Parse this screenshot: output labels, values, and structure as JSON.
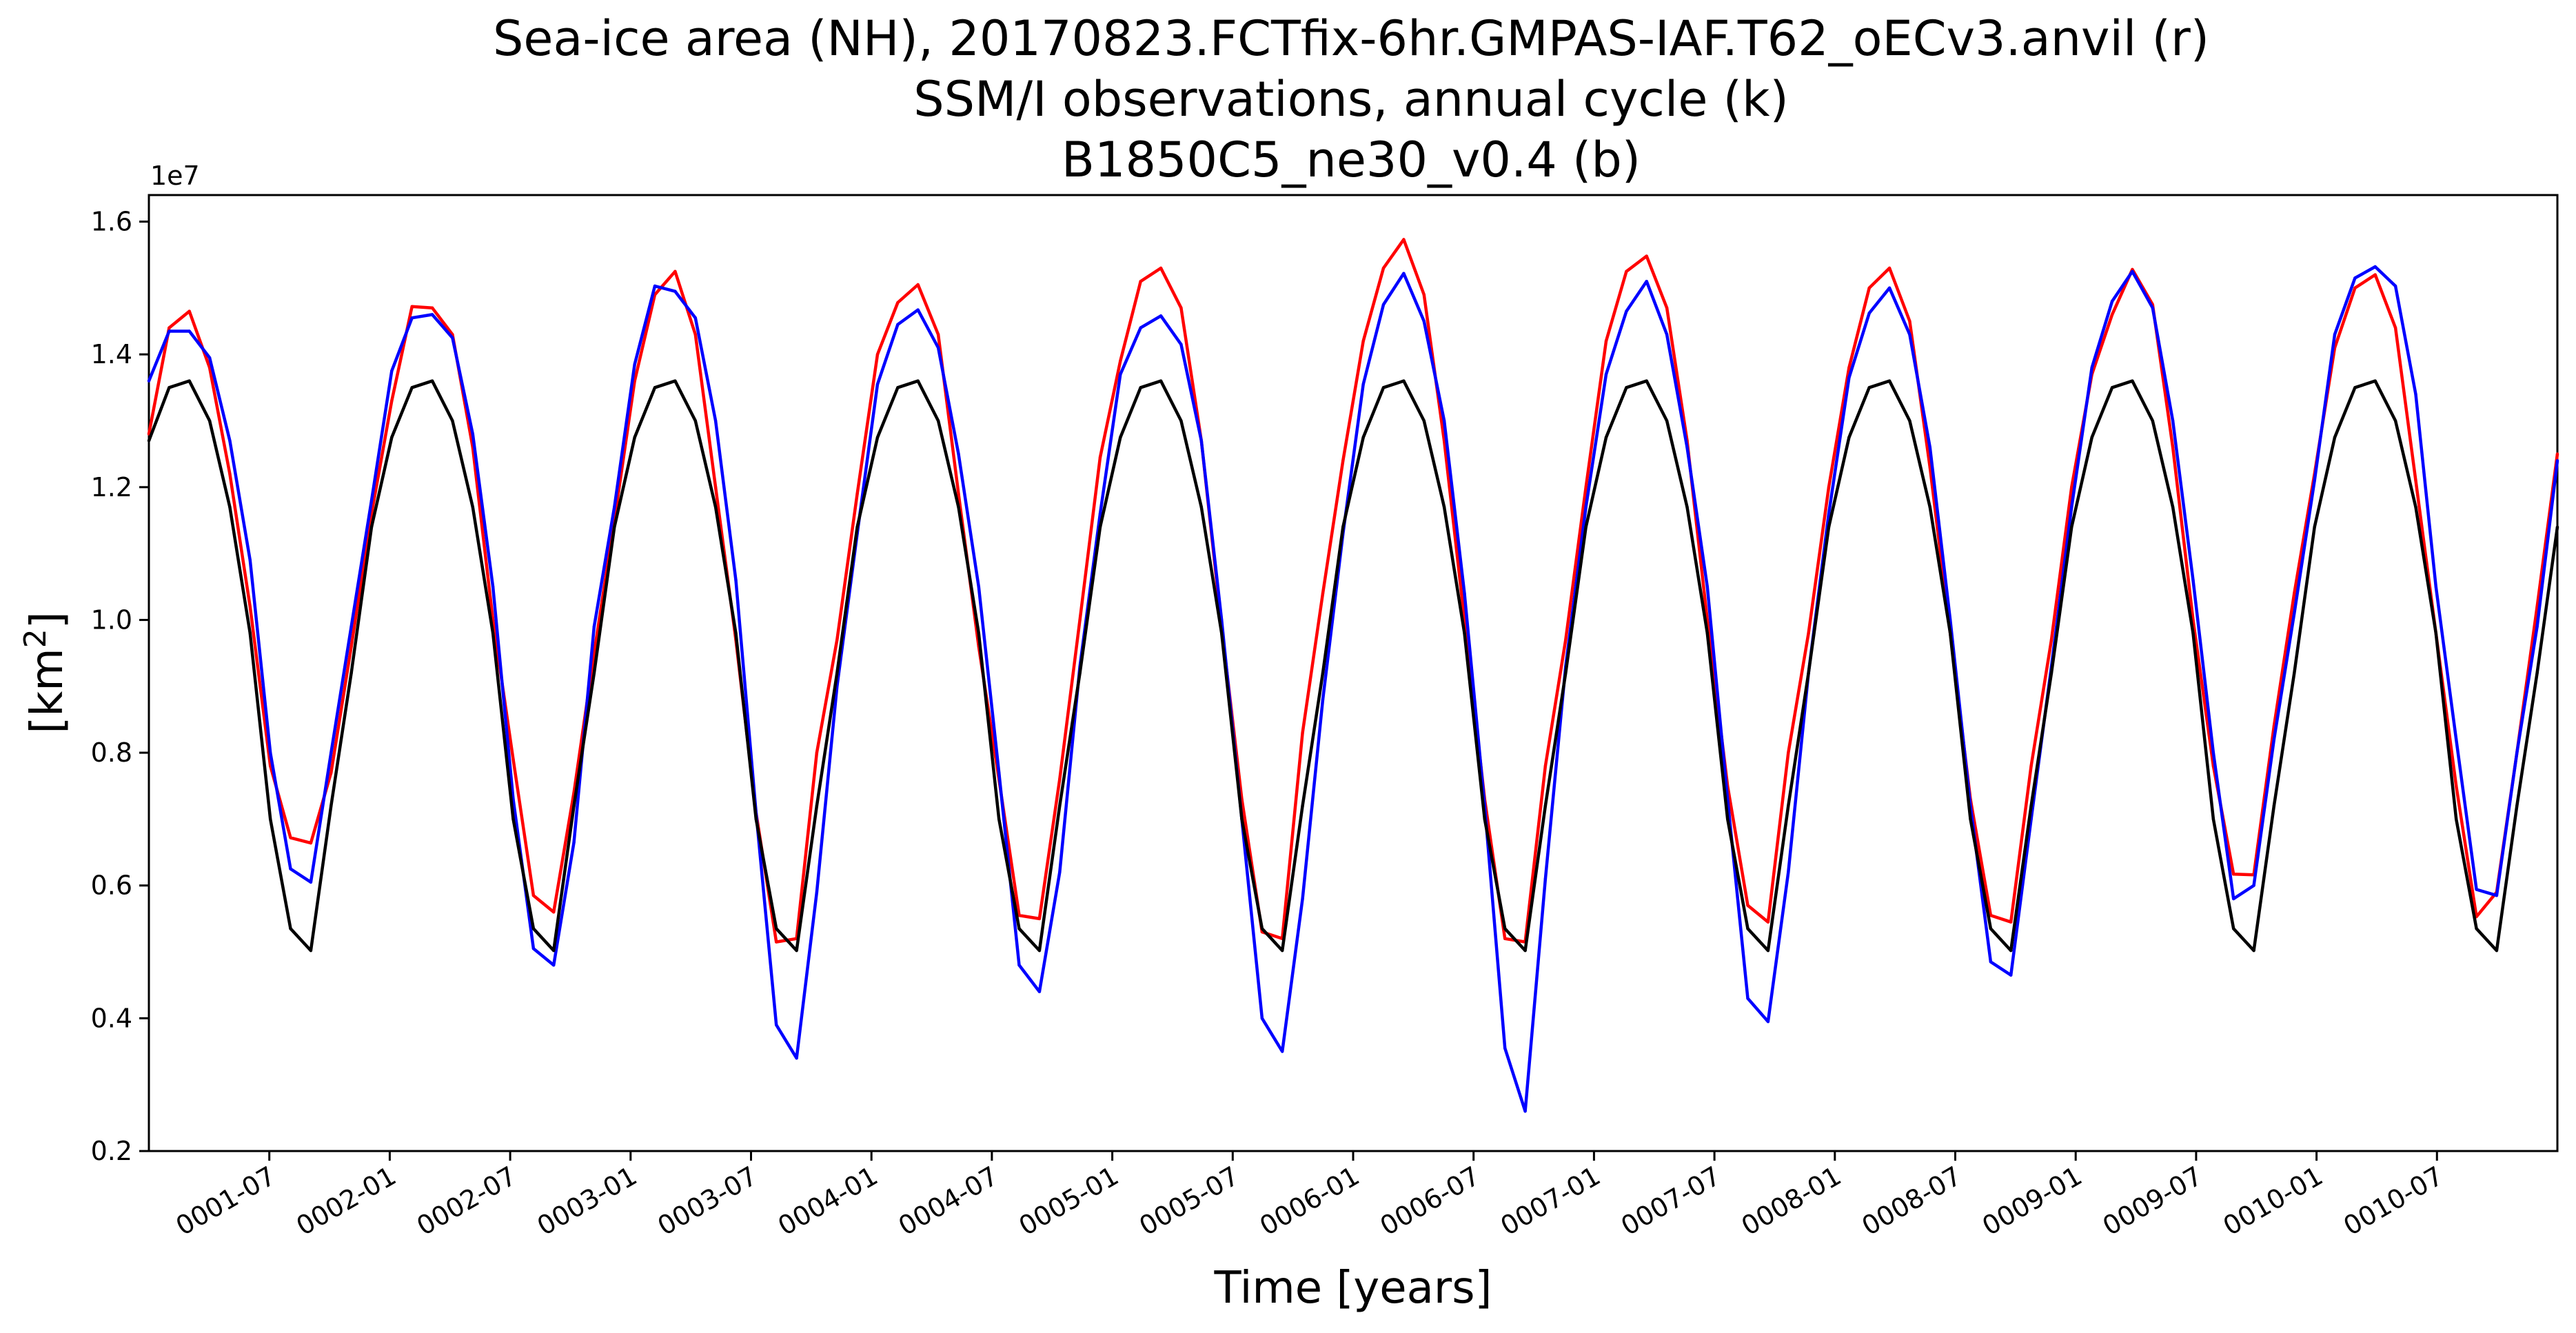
{
  "chart_data": {
    "type": "line",
    "title_lines": [
      "Sea-ice area (NH), 20170823.FCTfix-6hr.GMPAS-IAF.T62_oECv3.anvil (r)",
      "SSM/I observations, annual cycle (k)",
      "B1850C5_ne30_v0.4 (b)"
    ],
    "xlabel": "Time [years]",
    "ylabel_base": "[km",
    "ylabel_sup": "2",
    "ylabel_end": "]",
    "y_offset_label": "1e7",
    "ylim": [
      0.2,
      1.64
    ],
    "xlim": [
      0.0,
      10.0
    ],
    "yticks": [
      0.2,
      0.4,
      0.6,
      0.8,
      1.0,
      1.2,
      1.4,
      1.6
    ],
    "ytick_labels": [
      "0.2",
      "0.4",
      "0.6",
      "0.8",
      "1.0",
      "1.2",
      "1.4",
      "1.6"
    ],
    "xtick_labels": [
      "0001-07",
      "0002-01",
      "0002-07",
      "0003-01",
      "0003-07",
      "0004-01",
      "0004-07",
      "0005-01",
      "0005-07",
      "0006-01",
      "0006-07",
      "0007-01",
      "0007-07",
      "0008-01",
      "0008-07",
      "0009-01",
      "0009-07",
      "0010-01",
      "0010-07"
    ],
    "xtick_positions_years": [
      0.5,
      1.0,
      1.5,
      2.0,
      2.5,
      3.0,
      3.5,
      4.0,
      4.5,
      5.0,
      5.5,
      6.0,
      6.5,
      7.0,
      7.5,
      8.0,
      8.5,
      9.0,
      9.5
    ],
    "grid": false,
    "series": [
      {
        "color": "#ff0000",
        "values": [
          1.28,
          1.44,
          1.465,
          1.38,
          1.22,
          1.02,
          0.78,
          0.672,
          0.664,
          0.77,
          0.96,
          1.16,
          1.33,
          1.472,
          1.47,
          1.43,
          1.26,
          1.0,
          0.79,
          0.585,
          0.56,
          0.74,
          0.95,
          1.15,
          1.36,
          1.49,
          1.525,
          1.43,
          1.2,
          0.97,
          0.71,
          0.515,
          0.52,
          0.8,
          0.97,
          1.19,
          1.4,
          1.478,
          1.505,
          1.43,
          1.19,
          0.96,
          0.76,
          0.555,
          0.55,
          0.76,
          1.0,
          1.245,
          1.39,
          1.51,
          1.53,
          1.47,
          1.27,
          0.99,
          0.73,
          0.53,
          0.52,
          0.83,
          1.04,
          1.24,
          1.42,
          1.53,
          1.573,
          1.49,
          1.27,
          1.0,
          0.73,
          0.52,
          0.515,
          0.78,
          0.97,
          1.2,
          1.42,
          1.525,
          1.548,
          1.47,
          1.27,
          1.0,
          0.75,
          0.57,
          0.545,
          0.8,
          0.98,
          1.2,
          1.38,
          1.5,
          1.53,
          1.45,
          1.23,
          0.98,
          0.73,
          0.555,
          0.545,
          0.78,
          0.97,
          1.2,
          1.37,
          1.46,
          1.528,
          1.475,
          1.26,
          1.0,
          0.78,
          0.617,
          0.616,
          0.84,
          1.04,
          1.22,
          1.41,
          1.5,
          1.52,
          1.44,
          1.21,
          0.98,
          0.75,
          0.553,
          0.59,
          0.8,
          1.02,
          1.25
        ]
      },
      {
        "color": "#0000ff",
        "values": [
          1.36,
          1.435,
          1.435,
          1.395,
          1.27,
          1.09,
          0.8,
          0.625,
          0.605,
          0.8,
          0.99,
          1.18,
          1.375,
          1.455,
          1.46,
          1.425,
          1.28,
          1.05,
          0.73,
          0.505,
          0.48,
          0.665,
          0.99,
          1.17,
          1.385,
          1.503,
          1.495,
          1.455,
          1.3,
          1.06,
          0.71,
          0.39,
          0.34,
          0.59,
          0.9,
          1.13,
          1.355,
          1.445,
          1.467,
          1.41,
          1.25,
          1.05,
          0.77,
          0.48,
          0.44,
          0.62,
          0.93,
          1.16,
          1.37,
          1.44,
          1.458,
          1.415,
          1.27,
          1.0,
          0.7,
          0.4,
          0.35,
          0.58,
          0.88,
          1.13,
          1.355,
          1.475,
          1.522,
          1.45,
          1.3,
          1.04,
          0.72,
          0.355,
          0.26,
          0.61,
          0.93,
          1.17,
          1.37,
          1.465,
          1.51,
          1.43,
          1.26,
          1.05,
          0.73,
          0.43,
          0.395,
          0.62,
          0.92,
          1.16,
          1.365,
          1.462,
          1.5,
          1.43,
          1.26,
          1.0,
          0.72,
          0.485,
          0.465,
          0.7,
          0.93,
          1.17,
          1.38,
          1.48,
          1.525,
          1.47,
          1.3,
          1.06,
          0.8,
          0.58,
          0.6,
          0.82,
          1.01,
          1.21,
          1.43,
          1.515,
          1.532,
          1.503,
          1.34,
          1.05,
          0.82,
          0.594,
          0.585,
          0.8,
          0.99,
          1.24
        ]
      },
      {
        "color": "#000000",
        "values": [
          1.27,
          1.35,
          1.36,
          1.3,
          1.17,
          0.98,
          0.7,
          0.535,
          0.502,
          0.72,
          0.92,
          1.14,
          1.275,
          1.35,
          1.36,
          1.3,
          1.17,
          0.98,
          0.7,
          0.535,
          0.502,
          0.72,
          0.92,
          1.14,
          1.275,
          1.35,
          1.36,
          1.3,
          1.17,
          0.98,
          0.7,
          0.535,
          0.502,
          0.72,
          0.92,
          1.14,
          1.275,
          1.35,
          1.36,
          1.3,
          1.17,
          0.98,
          0.7,
          0.535,
          0.502,
          0.72,
          0.92,
          1.14,
          1.275,
          1.35,
          1.36,
          1.3,
          1.17,
          0.98,
          0.7,
          0.535,
          0.502,
          0.72,
          0.92,
          1.14,
          1.275,
          1.35,
          1.36,
          1.3,
          1.17,
          0.98,
          0.7,
          0.535,
          0.502,
          0.72,
          0.92,
          1.14,
          1.275,
          1.35,
          1.36,
          1.3,
          1.17,
          0.98,
          0.7,
          0.535,
          0.502,
          0.72,
          0.92,
          1.14,
          1.275,
          1.35,
          1.36,
          1.3,
          1.17,
          0.98,
          0.7,
          0.535,
          0.502,
          0.72,
          0.92,
          1.14,
          1.275,
          1.35,
          1.36,
          1.3,
          1.17,
          0.98,
          0.7,
          0.535,
          0.502,
          0.72,
          0.92,
          1.14,
          1.275,
          1.35,
          1.36,
          1.3,
          1.17,
          0.98,
          0.7,
          0.535,
          0.502,
          0.72,
          0.92,
          1.14
        ]
      }
    ]
  }
}
